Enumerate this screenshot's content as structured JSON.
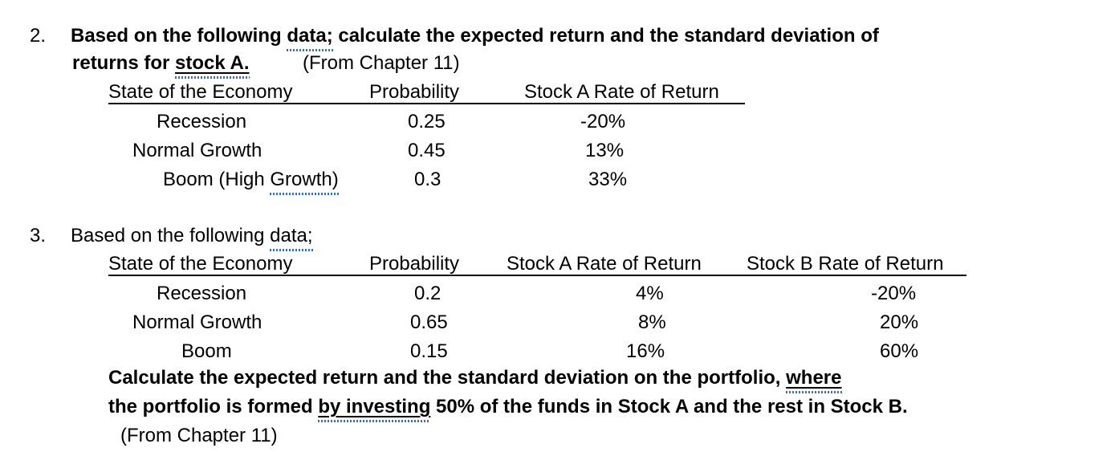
{
  "q2": {
    "number": "2.",
    "line1_a": "Based on the following ",
    "line1_data": "data;",
    "line1_b": " calculate the expected return and the standard deviation of",
    "line2_a": "returns for ",
    "line2_stock": "stock A.",
    "line2_source": "(From Chapter 11)",
    "headers": [
      "State of the Economy",
      "Probability",
      "Stock A Rate of Return"
    ],
    "rows": [
      {
        "state": "Recession",
        "probability": "0.25",
        "return_a": "-20%"
      },
      {
        "state": "Normal Growth",
        "probability": "0.45",
        "return_a": "13%"
      },
      {
        "state_a": "Boom (High ",
        "state_b": "Growth)",
        "probability": "0.3",
        "return_a": "33%"
      }
    ]
  },
  "q3": {
    "number": "3.",
    "line1_a": "Based on the following ",
    "line1_data": "data;",
    "headers": [
      "State of the Economy",
      "Probability",
      "Stock A Rate of Return",
      "Stock B Rate of Return"
    ],
    "rows": [
      {
        "state": "Recession",
        "probability": "0.2",
        "return_a": "4%",
        "return_b": "-20%"
      },
      {
        "state": "Normal Growth",
        "probability": "0.65",
        "return_a": "8%",
        "return_b": "20%"
      },
      {
        "state": "Boom",
        "probability": "0.15",
        "return_a": "16%",
        "return_b": "60%"
      }
    ],
    "calc_line1_a": "Calculate the expected return and the standard deviation on the portfolio, ",
    "calc_line1_where": "where",
    "calc_line2_a": "the portfolio is formed ",
    "calc_line2_by": "by  investing",
    "calc_line2_b": " 50% of the funds in Stock A and the rest in Stock B.",
    "source": "(From Chapter 11)"
  }
}
